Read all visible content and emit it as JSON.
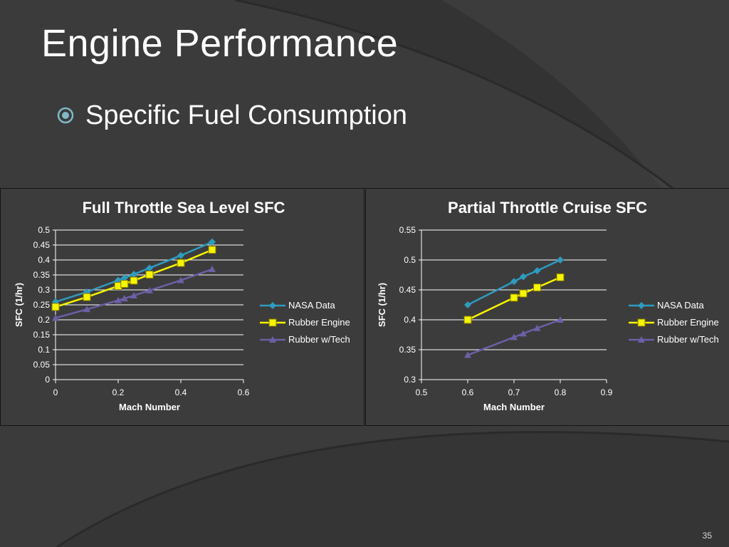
{
  "slide": {
    "title": "Engine Performance",
    "bullet": "Specific Fuel Consumption",
    "page_number": "35"
  },
  "colors": {
    "background": "#3b3b3b",
    "accent_teal": "#7fb8c8",
    "nasa": "#2e9bbf",
    "rubber": "#f5f500",
    "tech": "#6d5fa6",
    "grid": "#ffffff"
  },
  "chart_data": [
    {
      "type": "line",
      "title": "Full Throttle Sea Level SFC",
      "xlabel": "Mach Number",
      "ylabel": "SFC (1/hr)",
      "xlim": [
        0,
        0.6
      ],
      "ylim": [
        0,
        0.5
      ],
      "xticks": [
        0,
        0.2,
        0.4,
        0.6
      ],
      "yticks": [
        0,
        0.05,
        0.1,
        0.15,
        0.2,
        0.25,
        0.3,
        0.35,
        0.4,
        0.45,
        0.5
      ],
      "grid": true,
      "legend": "right",
      "series": [
        {
          "name": "NASA Data",
          "marker": "diamond",
          "color": "#2e9bbf",
          "x": [
            0,
            0.1,
            0.2,
            0.22,
            0.25,
            0.3,
            0.4,
            0.5
          ],
          "y": [
            0.26,
            0.293,
            0.332,
            0.34,
            0.352,
            0.373,
            0.415,
            0.46
          ]
        },
        {
          "name": "Rubber Engine",
          "marker": "square",
          "color": "#f5f500",
          "x": [
            0,
            0.1,
            0.2,
            0.22,
            0.25,
            0.3,
            0.4,
            0.5
          ],
          "y": [
            0.243,
            0.276,
            0.313,
            0.32,
            0.331,
            0.351,
            0.39,
            0.434
          ]
        },
        {
          "name": "Rubber w/Tech",
          "marker": "triangle",
          "color": "#6d5fa6",
          "x": [
            0,
            0.1,
            0.2,
            0.22,
            0.25,
            0.3,
            0.4,
            0.5
          ],
          "y": [
            0.206,
            0.235,
            0.265,
            0.271,
            0.281,
            0.298,
            0.332,
            0.369
          ]
        }
      ]
    },
    {
      "type": "line",
      "title": "Partial Throttle Cruise SFC",
      "xlabel": "Mach Number",
      "ylabel": "SFC (1/hr)",
      "xlim": [
        0.5,
        0.9
      ],
      "ylim": [
        0.3,
        0.55
      ],
      "xticks": [
        0.5,
        0.6,
        0.7,
        0.8,
        0.9
      ],
      "yticks": [
        0.3,
        0.35,
        0.4,
        0.45,
        0.5,
        0.55
      ],
      "grid": true,
      "legend": "right",
      "series": [
        {
          "name": "NASA Data",
          "marker": "diamond",
          "color": "#2e9bbf",
          "x": [
            0.6,
            0.7,
            0.72,
            0.75,
            0.8
          ],
          "y": [
            0.425,
            0.464,
            0.472,
            0.482,
            0.5
          ]
        },
        {
          "name": "Rubber Engine",
          "marker": "square",
          "color": "#f5f500",
          "x": [
            0.6,
            0.7,
            0.72,
            0.75,
            0.8
          ],
          "y": [
            0.4,
            0.437,
            0.444,
            0.454,
            0.471
          ]
        },
        {
          "name": "Rubber w/Tech",
          "marker": "triangle",
          "color": "#6d5fa6",
          "x": [
            0.6,
            0.7,
            0.72,
            0.75,
            0.8
          ],
          "y": [
            0.341,
            0.371,
            0.377,
            0.386,
            0.4
          ]
        }
      ]
    }
  ]
}
